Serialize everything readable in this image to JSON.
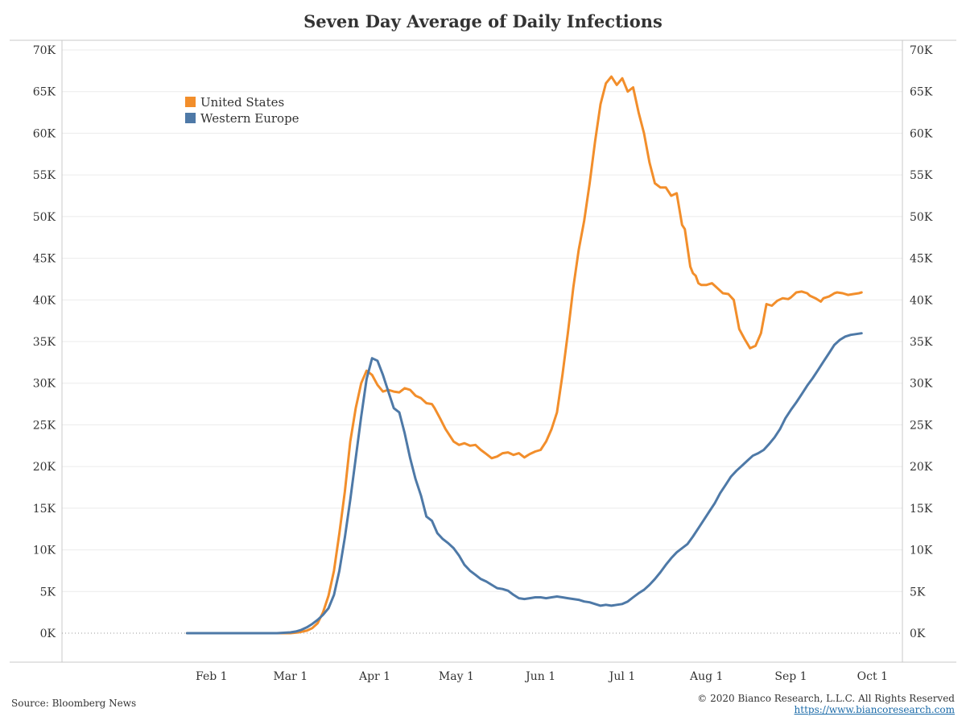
{
  "colors": {
    "united_states": "#f28e2b",
    "western_europe": "#4e79a7",
    "grid": "#ebebeb",
    "axis": "#c8c8c8"
  },
  "footer": {
    "source": "Source: Bloomberg News",
    "copyright": "© 2020 Bianco Research, L.L.C. All Rights Reserved",
    "url": "https://www.biancoresearch.com"
  },
  "chart_data": {
    "type": "line",
    "title": "Seven Day Average of Daily Infections",
    "xlabel": "",
    "ylabel": "",
    "x_unit": "days since Jan 1, 2020",
    "xlim": [
      -24,
      285
    ],
    "ylim": [
      0,
      70000
    ],
    "grid": true,
    "legend_position": "top-left",
    "x_ticks": [
      {
        "day": 31,
        "label": "Feb 1"
      },
      {
        "day": 60,
        "label": "Mar 1"
      },
      {
        "day": 91,
        "label": "Apr 1"
      },
      {
        "day": 121,
        "label": "May 1"
      },
      {
        "day": 152,
        "label": "Jun 1"
      },
      {
        "day": 182,
        "label": "Jul 1"
      },
      {
        "day": 213,
        "label": "Aug 1"
      },
      {
        "day": 244,
        "label": "Sep 1"
      },
      {
        "day": 274,
        "label": "Oct 1"
      }
    ],
    "y_ticks": [
      {
        "value": 0,
        "label": "0K"
      },
      {
        "value": 5000,
        "label": "5K"
      },
      {
        "value": 10000,
        "label": "10K"
      },
      {
        "value": 15000,
        "label": "15K"
      },
      {
        "value": 20000,
        "label": "20K"
      },
      {
        "value": 25000,
        "label": "25K"
      },
      {
        "value": 30000,
        "label": "30K"
      },
      {
        "value": 35000,
        "label": "35K"
      },
      {
        "value": 40000,
        "label": "40K"
      },
      {
        "value": 45000,
        "label": "45K"
      },
      {
        "value": 50000,
        "label": "50K"
      },
      {
        "value": 55000,
        "label": "55K"
      },
      {
        "value": 60000,
        "label": "60K"
      },
      {
        "value": 65000,
        "label": "65K"
      },
      {
        "value": 70000,
        "label": "70K"
      }
    ],
    "series": [
      {
        "name": "United States",
        "color": "#f28e2b",
        "x": [
          22,
          30,
          40,
          50,
          55,
          60,
          63,
          66,
          68,
          70,
          72,
          74,
          76,
          78,
          80,
          82,
          84,
          86,
          88,
          90,
          92,
          94,
          96,
          98,
          100,
          102,
          104,
          106,
          108,
          110,
          112,
          113,
          115,
          117,
          120,
          122,
          124,
          126,
          128,
          130,
          132,
          134,
          136,
          138,
          140,
          142,
          144,
          146,
          148,
          150,
          152,
          154,
          156,
          158,
          160,
          162,
          164,
          166,
          168,
          170,
          172,
          174,
          176,
          178,
          180,
          182,
          184,
          186,
          188,
          190,
          192,
          194,
          196,
          198,
          200,
          202,
          204,
          205,
          207,
          208,
          209,
          210,
          211,
          213,
          215,
          217,
          219,
          221,
          223,
          225,
          227,
          229,
          231,
          233,
          235,
          237,
          239,
          241,
          243,
          244,
          246,
          248,
          250,
          251,
          253,
          255,
          256,
          258,
          259,
          260,
          261,
          263,
          265,
          267,
          269,
          270
        ],
        "y": [
          0,
          0,
          0,
          0,
          0,
          0,
          100,
          300,
          600,
          1200,
          2500,
          4500,
          7500,
          12000,
          17000,
          23000,
          27000,
          30000,
          31500,
          31000,
          29800,
          29000,
          29200,
          29000,
          28900,
          29400,
          29200,
          28500,
          28200,
          27600,
          27500,
          27000,
          25800,
          24500,
          23000,
          22600,
          22800,
          22500,
          22600,
          22000,
          21500,
          21000,
          21200,
          21600,
          21700,
          21400,
          21600,
          21100,
          21500,
          21800,
          22000,
          23000,
          24500,
          26500,
          31000,
          36000,
          41500,
          46000,
          49500,
          54000,
          59000,
          63500,
          66000,
          66800,
          65800,
          66600,
          65000,
          65500,
          62500,
          60000,
          56500,
          54000,
          53500,
          53500,
          52500,
          52800,
          49000,
          48500,
          44000,
          43200,
          42900,
          42000,
          41800,
          41800,
          42000,
          41400,
          40800,
          40700,
          40000,
          36500,
          35300,
          34200,
          34500,
          36000,
          39500,
          39300,
          39900,
          40200,
          40100,
          40300,
          40900,
          41000,
          40800,
          40500,
          40200,
          39800,
          40200,
          40400,
          40600,
          40800,
          40900,
          40800,
          40600,
          40700,
          40800,
          40900
        ]
      },
      {
        "name": "Western Europe",
        "color": "#4e79a7",
        "x": [
          22,
          30,
          40,
          50,
          55,
          60,
          62,
          64,
          66,
          68,
          70,
          72,
          74,
          76,
          78,
          80,
          82,
          84,
          86,
          88,
          90,
          92,
          94,
          96,
          98,
          100,
          102,
          104,
          106,
          108,
          110,
          112,
          114,
          116,
          118,
          120,
          122,
          124,
          126,
          128,
          130,
          132,
          134,
          136,
          138,
          140,
          142,
          144,
          146,
          148,
          150,
          152,
          154,
          156,
          158,
          160,
          162,
          164,
          166,
          168,
          170,
          172,
          174,
          176,
          178,
          180,
          182,
          184,
          186,
          188,
          190,
          192,
          194,
          196,
          198,
          200,
          202,
          204,
          206,
          208,
          210,
          212,
          214,
          216,
          218,
          220,
          222,
          224,
          226,
          228,
          230,
          232,
          234,
          236,
          238,
          240,
          242,
          244,
          246,
          248,
          250,
          252,
          254,
          256,
          258,
          260,
          262,
          264,
          266,
          268,
          270
        ],
        "y": [
          0,
          0,
          0,
          0,
          0,
          100,
          200,
          400,
          700,
          1100,
          1600,
          2200,
          3000,
          4600,
          7500,
          11500,
          16000,
          21000,
          26000,
          30500,
          33000,
          32700,
          31000,
          29000,
          27000,
          26500,
          24000,
          21000,
          18500,
          16500,
          14000,
          13500,
          12000,
          11300,
          10800,
          10200,
          9300,
          8200,
          7500,
          7000,
          6500,
          6200,
          5800,
          5400,
          5300,
          5100,
          4600,
          4200,
          4100,
          4200,
          4300,
          4300,
          4200,
          4300,
          4400,
          4300,
          4200,
          4100,
          4000,
          3800,
          3700,
          3500,
          3300,
          3400,
          3300,
          3400,
          3500,
          3800,
          4300,
          4800,
          5200,
          5800,
          6500,
          7300,
          8200,
          9000,
          9700,
          10200,
          10700,
          11600,
          12600,
          13600,
          14600,
          15600,
          16800,
          17800,
          18800,
          19500,
          20100,
          20700,
          21300,
          21600,
          22000,
          22700,
          23500,
          24500,
          25800,
          26800,
          27700,
          28700,
          29700,
          30600,
          31600,
          32600,
          33600,
          34600,
          35200,
          35600,
          35800,
          35900,
          36000
        ]
      }
    ],
    "legend": [
      {
        "name": "United States",
        "color": "#f28e2b"
      },
      {
        "name": "Western Europe",
        "color": "#4e79a7"
      }
    ]
  }
}
